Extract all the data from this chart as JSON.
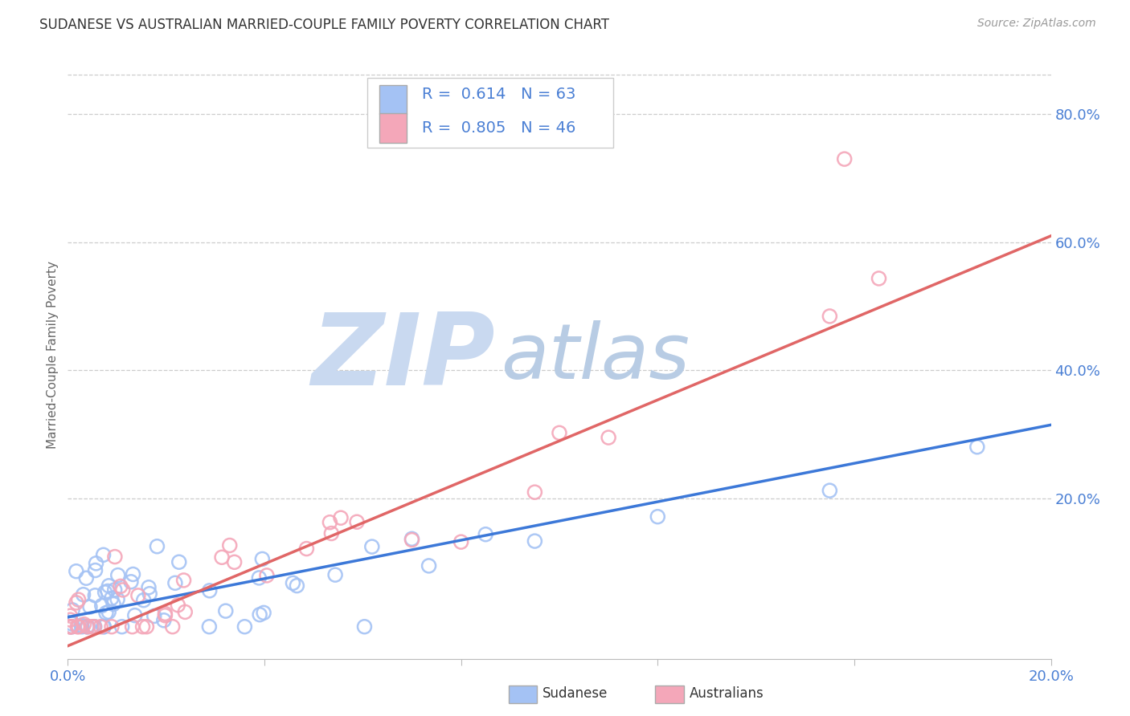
{
  "title": "SUDANESE VS AUSTRALIAN MARRIED-COUPLE FAMILY POVERTY CORRELATION CHART",
  "source": "Source: ZipAtlas.com",
  "ylabel": "Married-Couple Family Poverty",
  "xlim": [
    0.0,
    0.2
  ],
  "ylim": [
    -0.05,
    0.9
  ],
  "plot_ylim": [
    -0.05,
    0.9
  ],
  "xticks": [
    0.0,
    0.04,
    0.08,
    0.12,
    0.16,
    0.2
  ],
  "xtick_labels_show": [
    true,
    false,
    false,
    false,
    false,
    true
  ],
  "yticks_right": [
    0.2,
    0.4,
    0.6,
    0.8
  ],
  "sudanese_R": 0.614,
  "sudanese_N": 63,
  "australian_R": 0.805,
  "australian_N": 46,
  "blue_scatter_color": "#a4c2f4",
  "pink_scatter_color": "#f4a7b9",
  "blue_line_color": "#3c78d8",
  "pink_line_color": "#e06666",
  "watermark_zip_color": "#c9d9f0",
  "watermark_atlas_color": "#b8cce4",
  "background_color": "#ffffff",
  "grid_color": "#cccccc",
  "legend_label1": "Sudanese",
  "legend_label2": "Australians",
  "blue_line_x0": 0.0,
  "blue_line_y0": 0.015,
  "blue_line_x1": 0.2,
  "blue_line_y1": 0.315,
  "pink_line_x0": 0.0,
  "pink_line_y0": -0.03,
  "pink_line_x1": 0.2,
  "pink_line_y1": 0.61
}
